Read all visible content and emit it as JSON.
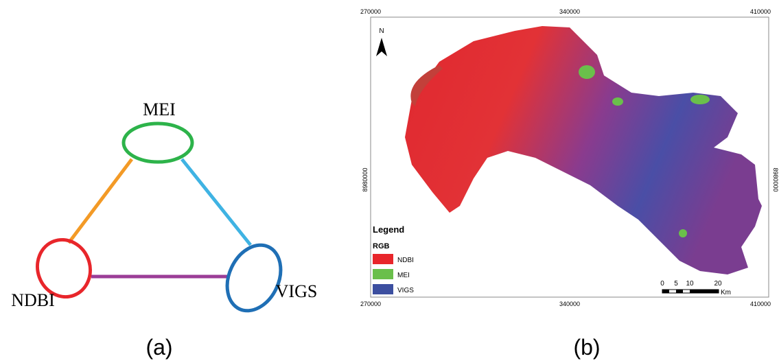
{
  "panel_a": {
    "nodes": [
      {
        "label": "MEI"
      },
      {
        "label": "NDBI"
      },
      {
        "label": "VIGS"
      }
    ],
    "caption": "(a)"
  },
  "panel_b": {
    "x_coords_top": [
      "270000",
      "340000",
      "410000"
    ],
    "x_coords_bottom": [
      "270000",
      "340000",
      "410000"
    ],
    "y_coord_left": "8980000",
    "y_coord_right": "8980000",
    "north": "N",
    "legend": {
      "title": "Legend",
      "subtitle": "RGB",
      "items": [
        "NDBI",
        "MEI",
        "VIGS"
      ]
    },
    "scale": {
      "labels": [
        "0",
        "5",
        "10",
        "20"
      ],
      "unit": "Km"
    },
    "caption": "(b)"
  }
}
